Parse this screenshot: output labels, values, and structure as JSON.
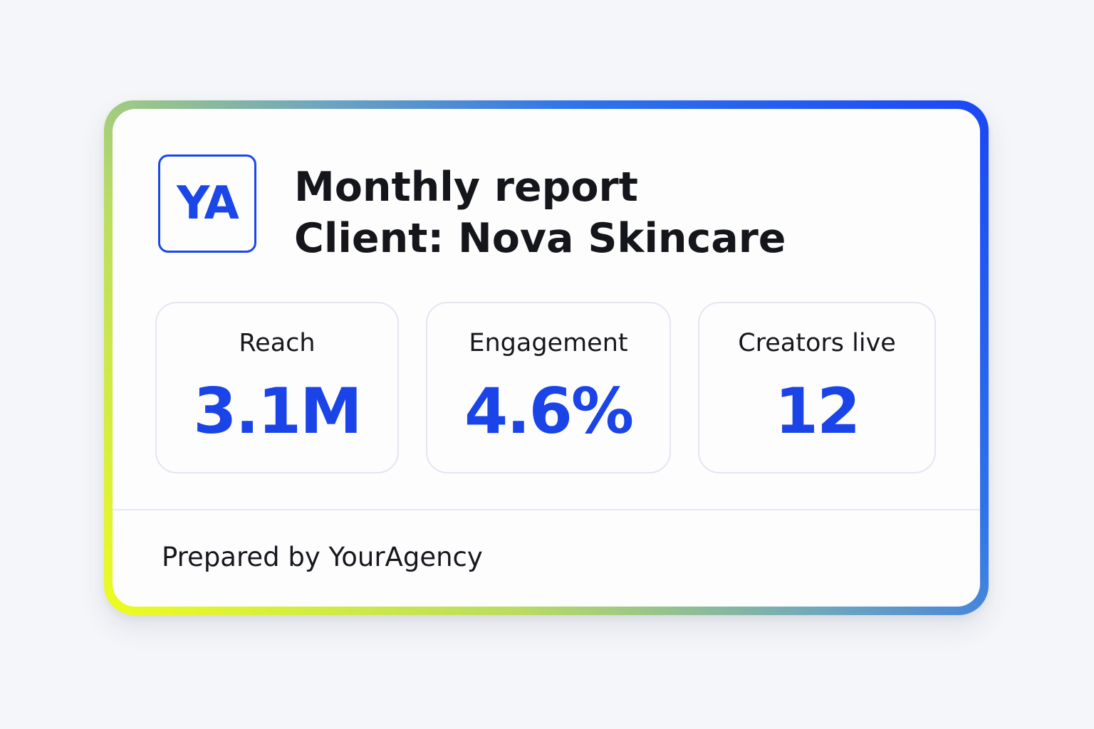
{
  "card": {
    "logo_text": "YA",
    "title": "Monthly report",
    "client": "Client: Nova Skincare",
    "metrics": [
      {
        "label": "Reach",
        "value": "3.1M"
      },
      {
        "label": "Engagement",
        "value": "4.6%"
      },
      {
        "label": "Creators live",
        "value": "12"
      }
    ],
    "footer": "Prepared by YourAgency"
  },
  "colors": {
    "accent": "#1c47e8",
    "gradient_start": "#eefc1f",
    "gradient_end": "#1a47f5",
    "text": "#15161b",
    "background": "#f5f6f9"
  }
}
